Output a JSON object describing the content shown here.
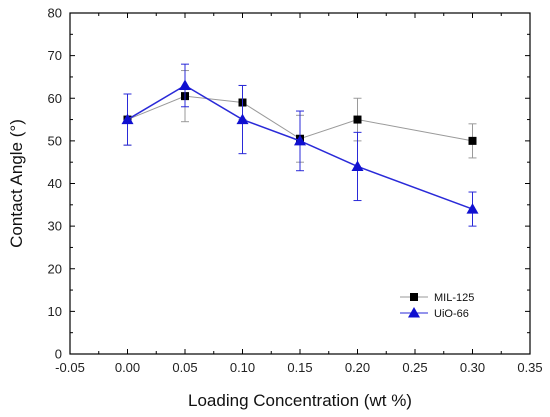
{
  "chart_data": {
    "type": "line",
    "title": "",
    "xlabel": "Loading Concentration (wt %)",
    "ylabel": "Contact Angle (°)",
    "xlim": [
      -0.05,
      0.35
    ],
    "ylim": [
      0,
      80
    ],
    "x_ticks": [
      "-0.05",
      "0.00",
      "0.05",
      "0.10",
      "0.15",
      "0.20",
      "0.25",
      "0.30",
      "0.35"
    ],
    "y_ticks": [
      "0",
      "10",
      "20",
      "30",
      "40",
      "50",
      "60",
      "70",
      "80"
    ],
    "grid": false,
    "legend_position": "bottom-right",
    "series": [
      {
        "name": "MIL-125",
        "color": "#000000",
        "line_color": "#9a9a9a",
        "marker": "square",
        "points": [
          {
            "x": 0.0,
            "y": 55,
            "err_low": 49,
            "err_high": 61
          },
          {
            "x": 0.05,
            "y": 60.5,
            "err_low": 54.5,
            "err_high": 66.5
          },
          {
            "x": 0.1,
            "y": 59,
            "err_low": 55,
            "err_high": 63
          },
          {
            "x": 0.15,
            "y": 50.5,
            "err_low": 45,
            "err_high": 56
          },
          {
            "x": 0.2,
            "y": 55,
            "err_low": 50,
            "err_high": 60
          },
          {
            "x": 0.3,
            "y": 50,
            "err_low": 46,
            "err_high": 54
          }
        ]
      },
      {
        "name": "UiO-66",
        "color": "#1010d0",
        "line_color": "#2a2ad8",
        "marker": "triangle",
        "points": [
          {
            "x": 0.0,
            "y": 55,
            "err_low": 49,
            "err_high": 61
          },
          {
            "x": 0.05,
            "y": 63,
            "err_low": 58,
            "err_high": 68
          },
          {
            "x": 0.1,
            "y": 55,
            "err_low": 47,
            "err_high": 63
          },
          {
            "x": 0.15,
            "y": 50,
            "err_low": 43,
            "err_high": 57
          },
          {
            "x": 0.2,
            "y": 44,
            "err_low": 36,
            "err_high": 52
          },
          {
            "x": 0.3,
            "y": 34,
            "err_low": 30,
            "err_high": 38
          }
        ]
      }
    ]
  }
}
